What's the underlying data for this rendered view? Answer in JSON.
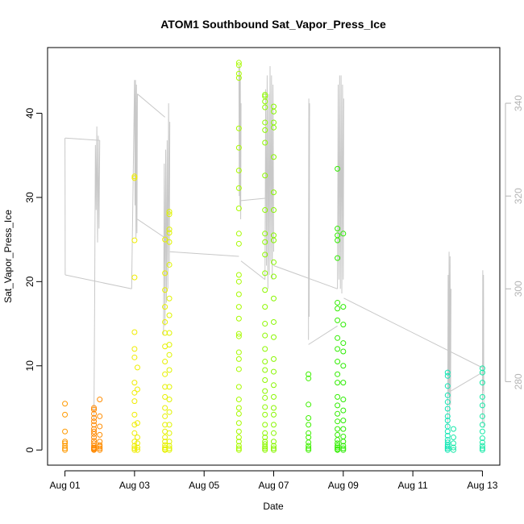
{
  "chart_data": {
    "type": "scatter",
    "title": "ATOM1 Southbound Sat_Vapor_Press_Ice",
    "xlabel": "Date",
    "ylabel": "Sat_Vapor_Press_Ice",
    "x_domain": [
      "2019-08-01",
      "2019-08-13.5"
    ],
    "xlim": [
      "2019-07-31T12:00",
      "2019-08-13T12:00"
    ],
    "ylim": [
      -1.8,
      47.8
    ],
    "y_ticks": [
      0,
      10,
      20,
      30,
      40
    ],
    "x_ticks": [
      {
        "date": "2019-08-01",
        "label": "Aug 01"
      },
      {
        "date": "2019-08-03",
        "label": "Aug 03"
      },
      {
        "date": "2019-08-05",
        "label": "Aug 05"
      },
      {
        "date": "2019-08-07",
        "label": "Aug 07"
      },
      {
        "date": "2019-08-09",
        "label": "Aug 09"
      },
      {
        "date": "2019-08-11",
        "label": "Aug 11"
      },
      {
        "date": "2019-08-13",
        "label": "Aug 13"
      }
    ],
    "y2lim": [
      262,
      352
    ],
    "y2_ticks": [
      280,
      300,
      320,
      340
    ],
    "grid": false,
    "legend": "none",
    "colors": {
      "frame": "#000000",
      "line_series": "#c8c8c8",
      "right_axis": "#b4b4b4"
    },
    "points": [
      {
        "time": "2019-08-01T00:00",
        "color": "#ff9a00",
        "values": [
          0,
          0.2,
          0.5,
          0.8,
          1.0,
          2.2,
          4.2,
          5.5
        ]
      },
      {
        "time": "2019-08-01T20:00",
        "color": "#ff8800",
        "values": [
          0,
          0.1,
          0.2,
          0.3,
          0.5,
          0.8,
          1.1,
          1.5,
          1.9,
          2.2,
          2.5,
          3.0,
          3.4,
          3.8,
          4.3,
          4.8,
          5.0
        ]
      },
      {
        "time": "2019-08-02T00:00",
        "color": "#ff8c00",
        "values": [
          0,
          0.2,
          0.4,
          0.6,
          1.0,
          1.8,
          2.8,
          4.0,
          6.0
        ]
      },
      {
        "time": "2019-08-03T00:00",
        "color": "#f0ec00",
        "values": [
          0,
          0.2,
          0.5,
          1.0,
          2.0,
          3.0,
          4.2,
          5.8,
          6.8,
          8.0,
          11.0,
          12.0,
          14.0,
          20.5,
          24.9,
          32.3,
          32.5
        ]
      },
      {
        "time": "2019-08-03T02:00",
        "color": "#eeee00",
        "values": [
          0,
          0.3,
          0.8,
          1.5,
          3.2,
          7.2,
          9.8
        ]
      },
      {
        "time": "2019-08-03T21:00",
        "color": "#e8f000",
        "values": [
          0,
          0.1,
          0.3,
          0.6,
          1.0,
          1.5,
          2.2,
          3.0,
          4.0,
          5.0,
          6.3,
          7.5,
          9.0,
          10.5,
          12.3,
          13.9,
          15.2,
          17.0,
          19.0,
          21.0,
          25.0
        ]
      },
      {
        "time": "2019-08-04T00:00",
        "color": "#e0f400",
        "values": [
          0,
          0.2,
          0.5,
          1.0,
          2.0,
          3.0,
          4.5,
          6.0,
          7.5,
          9.5,
          11.3,
          12.5,
          13.9,
          16.0,
          18.0,
          22.0,
          24.7,
          25.8,
          26.2,
          28.0,
          28.3
        ]
      },
      {
        "time": "2019-08-06T00:00",
        "color": "#a8fa00",
        "values": [
          0,
          0.2,
          0.5,
          1.0,
          1.5,
          2.2,
          3.2,
          4.3,
          5.0,
          6.0,
          7.5,
          9.6,
          10.8,
          11.6,
          13.5,
          13.8,
          15.6,
          17.0,
          18.5,
          20.0,
          20.8,
          24.5,
          25.7,
          28.7,
          31.1,
          33.2,
          35.9,
          38.2,
          44.2,
          44.7,
          45.7,
          46.0
        ]
      },
      {
        "time": "2019-08-06T18:00",
        "color": "#8ef800",
        "values": [
          0,
          0.2,
          0.4,
          0.7,
          1.0,
          1.5,
          2.0,
          3.0,
          4.2,
          5.1,
          6.2,
          7.0,
          8.3,
          9.5,
          10.5,
          12.0,
          13.6,
          15.0,
          17.0,
          19.0,
          21.0,
          23.2,
          24.7,
          25.7,
          28.5,
          32.6,
          36.5,
          38.0,
          38.9,
          40.7,
          41.4,
          42.0,
          42.2
        ]
      },
      {
        "time": "2019-08-07T00:00",
        "color": "#88f600",
        "values": [
          0,
          0.2,
          0.5,
          1.0,
          2.0,
          3.0,
          4.2,
          5.0,
          6.3,
          7.7,
          9.3,
          10.8,
          13.4,
          15.2,
          18.0,
          20.6,
          22.3,
          24.9,
          25.5,
          28.5,
          30.6,
          34.8,
          38.3,
          38.9,
          40.2,
          40.8
        ]
      },
      {
        "time": "2019-08-08T00:00",
        "color": "#3ef000",
        "values": [
          0,
          0.2,
          0.5,
          0.9,
          1.5,
          2.0,
          3.0,
          3.8,
          5.4,
          8.5,
          9.0
        ]
      },
      {
        "time": "2019-08-08T20:00",
        "color": "#32ee00",
        "values": [
          0,
          0.1,
          0.3,
          0.5,
          0.8,
          1.2,
          1.8,
          2.5,
          3.4,
          4.3,
          5.3,
          6.3,
          8.0,
          9.0,
          10.5,
          12.0,
          13.3,
          15.4,
          16.8,
          17.5,
          22.8,
          24.9,
          25.5,
          26.3,
          33.4
        ]
      },
      {
        "time": "2019-08-09T00:00",
        "color": "#2aec00",
        "values": [
          0,
          0.2,
          0.5,
          1.0,
          1.6,
          2.5,
          3.5,
          4.7,
          6.0,
          8.0,
          10.0,
          11.7,
          12.7,
          14.9,
          17.0,
          25.7
        ]
      },
      {
        "time": "2019-08-12T00:00",
        "color": "#10e6b4",
        "values": [
          0,
          0.2,
          0.4,
          0.6,
          0.9,
          1.2,
          1.7,
          2.2,
          2.8,
          3.5,
          4.0,
          4.9,
          5.7,
          6.5,
          7.6,
          8.8,
          9.2
        ]
      },
      {
        "time": "2019-08-12T04:00",
        "color": "#16e8a8",
        "values": [
          0,
          0.3,
          0.8,
          1.5,
          2.5
        ]
      },
      {
        "time": "2019-08-13T00:00",
        "color": "#18eaa8",
        "values": [
          0,
          0.2,
          0.5,
          0.9,
          1.4,
          2.2,
          3.0,
          4.0,
          5.3,
          6.3,
          8.0,
          9.2,
          9.7
        ]
      }
    ],
    "line_series": {
      "axis": "right",
      "color": "#c8c8c8",
      "description_free": true,
      "segments": [
        {
          "x": [
            "2019-08-01T00:00",
            "2019-08-01T00:05",
            "2019-08-01T00:10"
          ],
          "y": [
            332.5,
            322.0,
            303.0
          ]
        },
        {
          "x": [
            "2019-08-01T00:10",
            "2019-08-02T00:00"
          ],
          "y": [
            332.5,
            332.0
          ]
        },
        {
          "x": [
            "2019-08-01T00:10",
            "2019-08-02T22:00"
          ],
          "y": [
            303.0,
            300.0
          ]
        },
        {
          "x": [
            "2019-08-01T20:00",
            "2019-08-01T20:30",
            "2019-08-01T21:00",
            "2019-08-01T21:30",
            "2019-08-01T22:00",
            "2019-08-01T22:30",
            "2019-08-01T23:00",
            "2019-08-01T23:30",
            "2019-08-02T00:00"
          ],
          "y": [
            272.0,
            298.0,
            331.0,
            317.0,
            335.0,
            310.0,
            333.0,
            313.0,
            332.0
          ]
        },
        {
          "x": [
            "2019-08-02T22:00",
            "2019-08-03T00:00",
            "2019-08-03T00:20",
            "2019-08-03T00:40",
            "2019-08-03T01:00",
            "2019-08-03T01:20",
            "2019-08-03T01:40",
            "2019-08-03T02:00"
          ],
          "y": [
            300.0,
            345.0,
            318.0,
            345.0,
            311.0,
            344.0,
            312.0,
            342.0
          ]
        },
        {
          "x": [
            "2019-08-03T02:00",
            "2019-08-03T21:00"
          ],
          "y": [
            342.0,
            337.0
          ]
        },
        {
          "x": [
            "2019-08-03T02:00",
            "2019-08-03T21:00"
          ],
          "y": [
            315.0,
            311.0
          ]
        },
        {
          "x": [
            "2019-08-03T20:00",
            "2019-08-03T20:30",
            "2019-08-03T21:00",
            "2019-08-03T21:30",
            "2019-08-03T22:00",
            "2019-08-03T22:30",
            "2019-08-03T23:00",
            "2019-08-03T23:30",
            "2019-08-04T00:00",
            "2019-08-04T00:20"
          ],
          "y": [
            290.0,
            327.0,
            292.0,
            330.0,
            297.0,
            332.0,
            300.0,
            340.0,
            305.0,
            336.0
          ]
        },
        {
          "x": [
            "2019-08-04T00:20",
            "2019-08-06T00:00"
          ],
          "y": [
            308.0,
            307.0
          ]
        },
        {
          "x": [
            "2019-08-06T00:00",
            "2019-08-06T00:15",
            "2019-08-06T00:30",
            "2019-08-06T00:45",
            "2019-08-06T01:00",
            "2019-08-06T01:15",
            "2019-08-06T01:30"
          ],
          "y": [
            348.0,
            320.0,
            348.0,
            318.0,
            346.0,
            315.0,
            340.0
          ]
        },
        {
          "x": [
            "2019-08-06T01:30",
            "2019-08-06T18:00"
          ],
          "y": [
            319.0,
            319.5
          ]
        },
        {
          "x": [
            "2019-08-06T01:30",
            "2019-08-06T18:00"
          ],
          "y": [
            306.0,
            302.0
          ]
        },
        {
          "x": [
            "2019-08-06T18:00",
            "2019-08-06T18:30",
            "2019-08-06T19:00",
            "2019-08-06T19:30",
            "2019-08-06T20:00",
            "2019-08-06T20:30",
            "2019-08-06T21:00",
            "2019-08-06T21:30",
            "2019-08-06T22:00",
            "2019-08-06T22:30",
            "2019-08-06T23:00",
            "2019-08-06T23:30",
            "2019-08-07T00:00"
          ],
          "y": [
            302.0,
            343.0,
            305.0,
            346.0,
            300.0,
            342.0,
            303.0,
            348.0,
            306.0,
            346.0,
            302.0,
            344.0,
            308.0
          ]
        },
        {
          "x": [
            "2019-08-07T00:00",
            "2019-08-08T20:00"
          ],
          "y": [
            305.0,
            300.0
          ]
        },
        {
          "x": [
            "2019-08-08T00:00",
            "2019-08-08T00:15",
            "2019-08-08T00:30",
            "2019-08-08T00:45"
          ],
          "y": [
            289.0,
            341.0,
            294.0,
            340.0
          ]
        },
        {
          "x": [
            "2019-08-08T00:00",
            "2019-08-08T20:00"
          ],
          "y": [
            288.0,
            292.0
          ]
        },
        {
          "x": [
            "2019-08-08T20:00",
            "2019-08-08T20:30",
            "2019-08-08T21:00",
            "2019-08-08T21:30",
            "2019-08-08T22:00",
            "2019-08-08T22:30",
            "2019-08-08T23:00",
            "2019-08-08T23:30",
            "2019-08-09T00:00",
            "2019-08-09T00:20"
          ],
          "y": [
            300.0,
            344.0,
            302.0,
            346.0,
            300.0,
            346.0,
            299.0,
            344.0,
            302.0,
            341.0
          ]
        },
        {
          "x": [
            "2019-08-09T00:20",
            "2019-08-13T00:00"
          ],
          "y": [
            298.0,
            283.0
          ]
        },
        {
          "x": [
            "2019-08-12T00:00",
            "2019-08-12T00:20",
            "2019-08-12T00:40",
            "2019-08-12T01:00",
            "2019-08-12T01:20",
            "2019-08-12T01:40",
            "2019-08-12T02:00",
            "2019-08-12T02:20"
          ],
          "y": [
            270.0,
            303.0,
            277.0,
            308.0,
            272.0,
            307.0,
            275.0,
            300.0
          ]
        },
        {
          "x": [
            "2019-08-12T02:20",
            "2019-08-13T00:00"
          ],
          "y": [
            278.0,
            282.0
          ]
        },
        {
          "x": [
            "2019-08-13T00:00",
            "2019-08-13T00:15",
            "2019-08-13T00:30",
            "2019-08-13T00:45",
            "2019-08-13T01:00"
          ],
          "y": [
            271.0,
            304.0,
            278.0,
            303.0,
            270.0
          ]
        }
      ]
    }
  }
}
